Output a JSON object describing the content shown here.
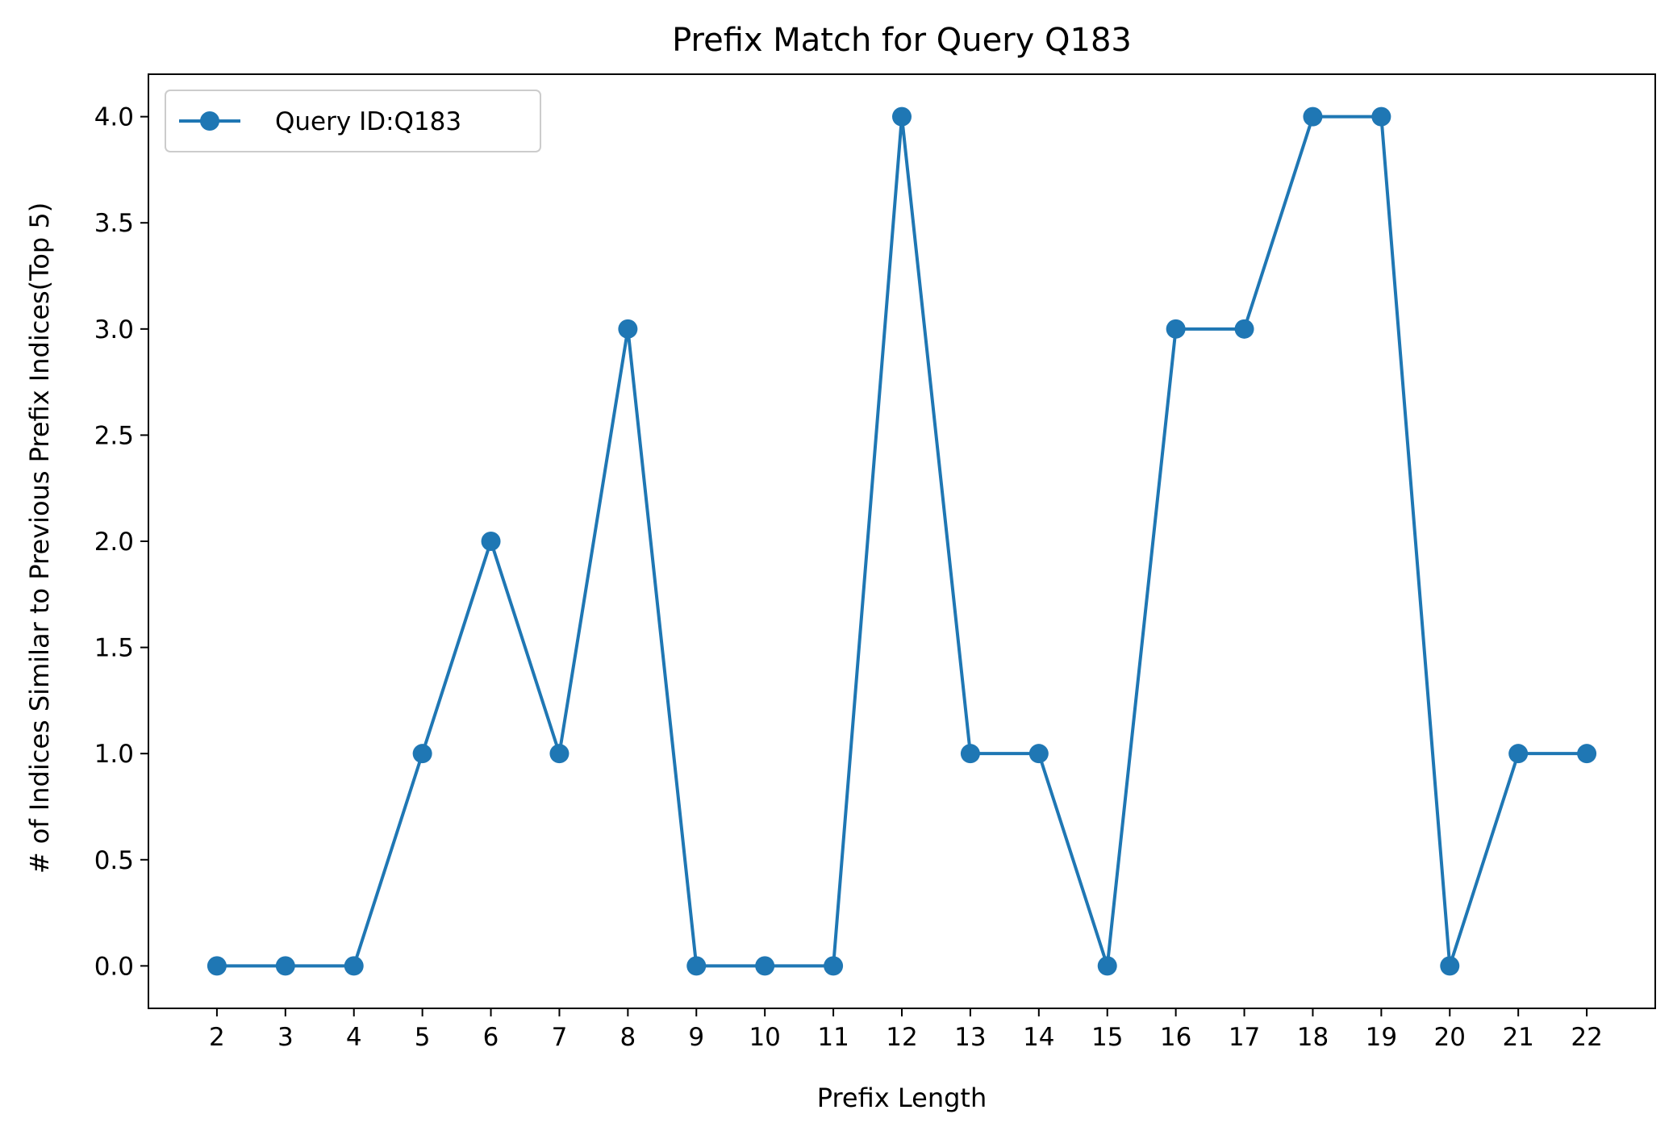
{
  "chart_data": {
    "type": "line",
    "title": "Prefix Match for Query Q183",
    "xlabel": "Prefix Length",
    "ylabel": "# of Indices Similar to Previous Prefix Indices(Top 5)",
    "x": [
      2,
      3,
      4,
      5,
      6,
      7,
      8,
      9,
      10,
      11,
      12,
      13,
      14,
      15,
      16,
      17,
      18,
      19,
      20,
      21,
      22
    ],
    "xlim": [
      1,
      23
    ],
    "ylim": [
      -0.2,
      4.2
    ],
    "yticks": [
      "0.0",
      "0.5",
      "1.0",
      "1.5",
      "2.0",
      "2.5",
      "3.0",
      "3.5",
      "4.0"
    ],
    "ytick_values": [
      0,
      0.5,
      1,
      1.5,
      2,
      2.5,
      3,
      3.5,
      4
    ],
    "grid": false,
    "legend_position": "upper-left",
    "series": [
      {
        "name": "Query ID:Q183",
        "color": "#1f77b4",
        "marker": "circle",
        "values": [
          0,
          0,
          0,
          1,
          2,
          1,
          3,
          0,
          0,
          0,
          4,
          1,
          1,
          0,
          3,
          3,
          4,
          4,
          0,
          1,
          1
        ]
      }
    ]
  }
}
